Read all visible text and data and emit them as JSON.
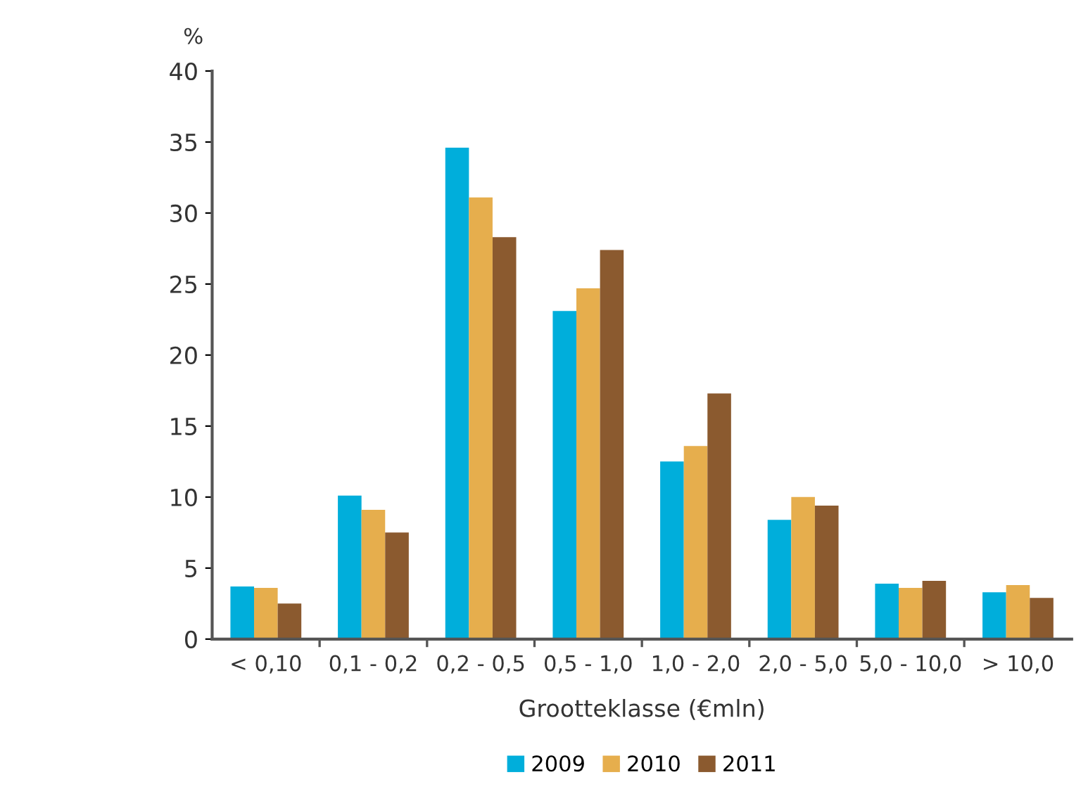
{
  "chart_data": {
    "type": "bar",
    "ylabel": "%",
    "xlabel": "Grootteklasse (€mln)",
    "categories": [
      "< 0,10",
      "0,1 - 0,2",
      "0,2 - 0,5",
      "0,5 - 1,0",
      "1,0 - 2,0",
      "2,0 - 5,0",
      "5,0 - 10,0",
      "> 10,0"
    ],
    "series": [
      {
        "name": "2009",
        "color": "#00aedb",
        "values": [
          3.7,
          10.1,
          34.6,
          23.1,
          12.5,
          8.4,
          3.9,
          3.3
        ]
      },
      {
        "name": "2010",
        "color": "#e6ae4d",
        "values": [
          3.6,
          9.1,
          31.1,
          24.7,
          13.6,
          10.0,
          3.6,
          3.8
        ]
      },
      {
        "name": "2011",
        "color": "#8b5a2f",
        "values": [
          2.5,
          7.5,
          28.3,
          27.4,
          17.3,
          9.4,
          4.1,
          2.9
        ]
      }
    ],
    "ylim": [
      0,
      40
    ],
    "yticks": [
      0,
      5,
      10,
      15,
      20,
      25,
      30,
      35,
      40
    ],
    "grid": false,
    "legend": "bottom"
  }
}
